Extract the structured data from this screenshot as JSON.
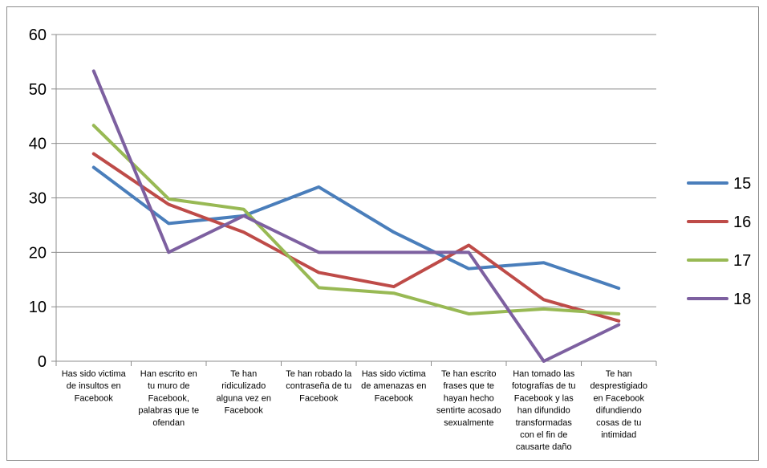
{
  "chart_data": {
    "type": "line",
    "categories": [
      [
        "Has sido victima",
        "de insultos en",
        "Facebook"
      ],
      [
        "Han escrito en",
        "tu muro de",
        "Facebook,",
        "palabras que te",
        "ofendan"
      ],
      [
        "Te han",
        "ridiculizado",
        "alguna vez en",
        "Facebook"
      ],
      [
        "Te han robado la",
        "contraseña de tu",
        "Facebook"
      ],
      [
        "Has sido victima",
        "de amenazas en",
        "Facebook"
      ],
      [
        "Te han escrito",
        "frases que te",
        "hayan hecho",
        "sentirte acosado",
        "sexualmente"
      ],
      [
        "Han tomado las",
        "fotografías de tu",
        "Facebook y las",
        "han difundido",
        "transformadas",
        "con el fin de",
        "causarte daño"
      ],
      [
        "Te han",
        "desprestigiado",
        "en Facebook",
        "difundiendo",
        "cosas de tu",
        "intimidad"
      ]
    ],
    "series": [
      {
        "name": "15",
        "color": "#4a7ebb",
        "values": [
          35.6,
          25.3,
          26.7,
          32.0,
          23.7,
          17.0,
          18.1,
          13.4
        ]
      },
      {
        "name": "16",
        "color": "#be4b48",
        "values": [
          38.1,
          28.8,
          23.7,
          16.3,
          13.7,
          21.3,
          11.3,
          7.4
        ]
      },
      {
        "name": "17",
        "color": "#98b954",
        "values": [
          43.3,
          29.8,
          27.9,
          13.5,
          12.5,
          8.7,
          9.6,
          8.7
        ]
      },
      {
        "name": "18",
        "color": "#7d60a0",
        "values": [
          53.3,
          20.0,
          26.7,
          20.0,
          20.0,
          20.0,
          0.0,
          6.7
        ]
      }
    ],
    "y_ticks": [
      "0",
      "10",
      "20",
      "30",
      "40",
      "50",
      "60"
    ],
    "ylim": [
      0,
      60
    ],
    "grid": true,
    "legend_position": "right"
  }
}
